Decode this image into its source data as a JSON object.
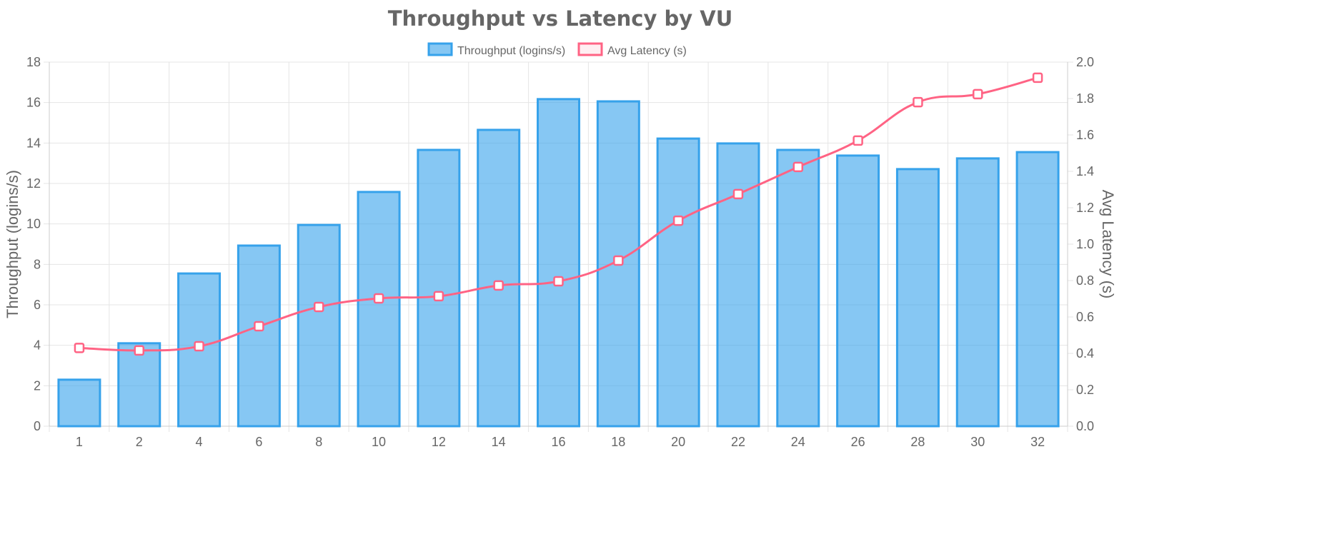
{
  "chart_data": {
    "type": "bar+line",
    "title": "Throughput vs Latency by VU",
    "categories": [
      "1",
      "2",
      "4",
      "6",
      "8",
      "10",
      "12",
      "14",
      "16",
      "18",
      "20",
      "22",
      "24",
      "26",
      "28",
      "30",
      "32"
    ],
    "series": [
      {
        "name": "Throughput (logins/s)",
        "type": "bar",
        "axis": "left",
        "color": "#36a2eb",
        "fill": "rgba(54,162,235,0.6)",
        "values": [
          2.3,
          4.1,
          7.55,
          8.93,
          9.95,
          11.58,
          13.66,
          14.65,
          16.17,
          16.06,
          14.22,
          13.98,
          13.66,
          13.38,
          12.71,
          13.24,
          13.55
        ]
      },
      {
        "name": "Avg Latency (s)",
        "type": "line",
        "axis": "right",
        "color": "#ff6384",
        "values": [
          0.43,
          0.416,
          0.439,
          0.549,
          0.655,
          0.702,
          0.714,
          0.773,
          0.796,
          0.91,
          1.129,
          1.275,
          1.424,
          1.569,
          1.78,
          1.824,
          1.914
        ]
      }
    ],
    "y_left": {
      "label": "Throughput (logins/s)",
      "min": 0,
      "max": 18,
      "step": 2
    },
    "y_right": {
      "label": "Avg Latency (s)",
      "min": 0,
      "max": 2.0,
      "step": 0.2
    },
    "grid": true,
    "legend": "top"
  }
}
